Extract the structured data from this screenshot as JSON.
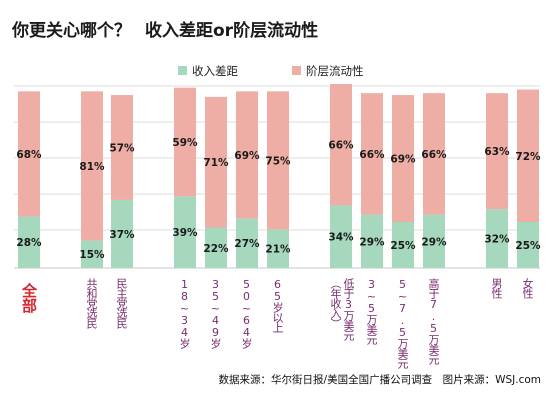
{
  "title": {
    "main": "你更关心哪个？",
    "sub": "收入差距or阶层流动性"
  },
  "source": "数据来源：华尔街日报/美国全国广播公司调查　图片来源：WSJ.com",
  "colors": {
    "income_gap": "#a6d8be",
    "mobility": "#eeada5",
    "axis_label": "#7a2d6d",
    "highlight": "#d6252c"
  },
  "chart_data": {
    "type": "bar",
    "stacked": true,
    "categories": [
      [
        "全部"
      ],
      [
        "共和党选民"
      ],
      [
        "民主党选民"
      ],
      [
        "18~34岁"
      ],
      [
        "35~49岁"
      ],
      [
        "50~64岁"
      ],
      [
        "65岁以上"
      ],
      [
        "（年收入）",
        "低于3万美元"
      ],
      [
        "3~5万美元"
      ],
      [
        "5~7.5万美元"
      ],
      [
        "高于7.5万美元"
      ],
      [
        "男性"
      ],
      [
        "女性"
      ]
    ],
    "series": [
      {
        "name": "收入差距",
        "values": [
          28,
          15,
          37,
          39,
          22,
          27,
          21,
          34,
          29,
          25,
          29,
          32,
          25
        ]
      },
      {
        "name": "阶层流动性",
        "values": [
          68,
          81,
          57,
          59,
          71,
          69,
          75,
          66,
          66,
          69,
          66,
          63,
          72
        ]
      }
    ],
    "value_labels": {
      "income_gap": [
        "28%",
        "15%",
        "37%",
        "39%",
        "22%",
        "27%",
        "21%",
        "34%",
        "29%",
        "25%",
        "29%",
        "32%",
        "25%"
      ],
      "mobility": [
        "68%",
        "81%",
        "57%",
        "59%",
        "71%",
        "69%",
        "75%",
        "66%",
        "66%",
        "69%",
        "66%",
        "63%",
        "72%"
      ]
    },
    "ylim": [
      0,
      100
    ],
    "grid": true,
    "legend": "top-center"
  }
}
